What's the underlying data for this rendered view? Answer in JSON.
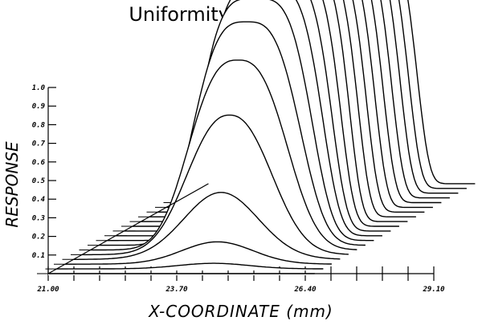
{
  "chart_data": {
    "type": "line",
    "subtype": "3d-waterfall",
    "title": "Uniformity of Response",
    "xlabel": "X-COORDINATE (mm)",
    "ylabel": "RESPONSE",
    "xlim": [
      21.0,
      29.1
    ],
    "ylim": [
      0,
      1.0
    ],
    "x_tick_labels": [
      "21.00",
      "23.70",
      "26.40",
      "29.10"
    ],
    "x_minor_tick_step": 0.54,
    "y_tick_labels": [
      "0.1",
      "0.2",
      "0.3",
      "0.4",
      "0.5",
      "0.6",
      "0.7",
      "0.8",
      "0.9",
      "1.0"
    ],
    "y_ticks": [
      0.1,
      0.2,
      0.3,
      0.4,
      0.5,
      0.6,
      0.7,
      0.8,
      0.9,
      1.0
    ],
    "trace_x_range": [
      21.0,
      26.6
    ],
    "traces": [
      {
        "peak": 0.0,
        "center": 24.3,
        "halfwidth": 1.0,
        "flatness": 2
      },
      {
        "peak": 0.03,
        "center": 24.3,
        "halfwidth": 1.0,
        "flatness": 2
      },
      {
        "peak": 0.12,
        "center": 24.2,
        "halfwidth": 1.0,
        "flatness": 2
      },
      {
        "peak": 0.36,
        "center": 24.1,
        "halfwidth": 1.05,
        "flatness": 2
      },
      {
        "peak": 0.75,
        "center": 24.1,
        "halfwidth": 1.1,
        "flatness": 2.3
      },
      {
        "peak": 1.02,
        "center": 24.1,
        "halfwidth": 1.2,
        "flatness": 2.7
      },
      {
        "peak": 1.2,
        "center": 24.1,
        "halfwidth": 1.25,
        "flatness": 3.2
      },
      {
        "peak": 1.3,
        "center": 24.1,
        "halfwidth": 1.28,
        "flatness": 3.8
      },
      {
        "peak": 1.34,
        "center": 24.1,
        "halfwidth": 1.3,
        "flatness": 4.4
      },
      {
        "peak": 1.36,
        "center": 24.1,
        "halfwidth": 1.3,
        "flatness": 5
      },
      {
        "peak": 1.37,
        "center": 24.1,
        "halfwidth": 1.3,
        "flatness": 5.5
      },
      {
        "peak": 1.37,
        "center": 24.1,
        "halfwidth": 1.3,
        "flatness": 6
      },
      {
        "peak": 1.37,
        "center": 24.1,
        "halfwidth": 1.3,
        "flatness": 6
      },
      {
        "peak": 1.37,
        "center": 24.1,
        "halfwidth": 1.3,
        "flatness": 6
      },
      {
        "peak": 1.37,
        "center": 24.1,
        "halfwidth": 1.3,
        "flatness": 6
      },
      {
        "peak": 1.37,
        "center": 24.1,
        "halfwidth": 1.3,
        "flatness": 6
      },
      {
        "peak": 1.37,
        "center": 24.1,
        "halfwidth": 1.3,
        "flatness": 6
      },
      {
        "peak": 1.37,
        "center": 24.1,
        "halfwidth": 1.3,
        "flatness": 6
      },
      {
        "peak": 1.36,
        "center": 24.1,
        "halfwidth": 1.3,
        "flatness": 6
      },
      {
        "peak": 1.35,
        "center": 24.1,
        "halfwidth": 1.3,
        "flatness": 6
      }
    ]
  }
}
